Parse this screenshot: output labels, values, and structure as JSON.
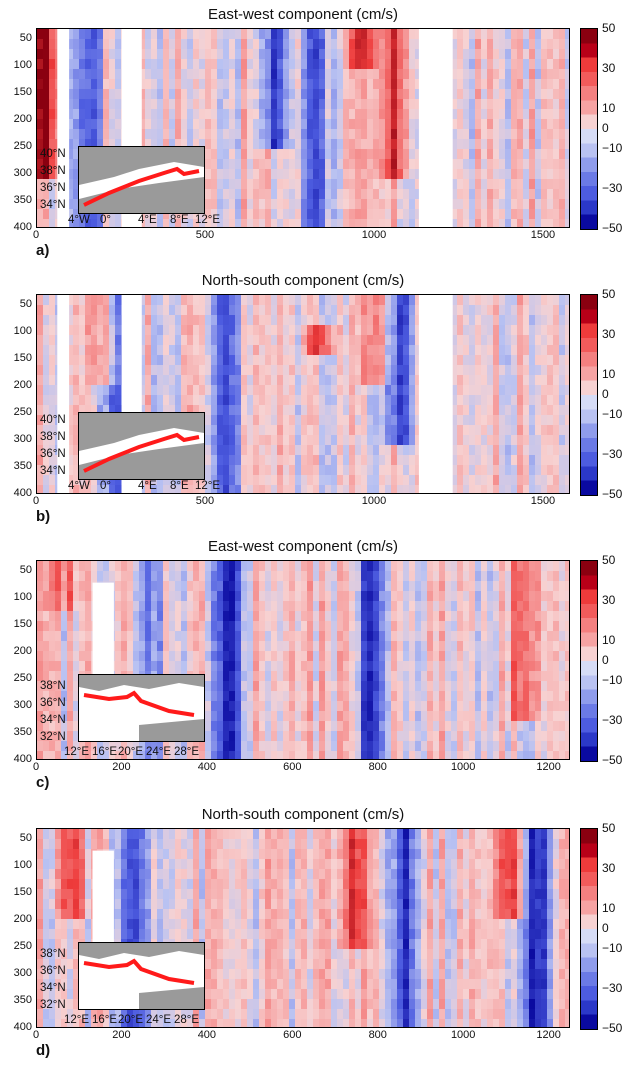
{
  "chart_data": [
    {
      "type": "heatmap",
      "panel_label": "a)",
      "title": "East-west component (cm/s)",
      "x_ticks": [
        "0",
        "500",
        "1000",
        "1500"
      ],
      "xlim": [
        0,
        1580
      ],
      "y_ticks": [
        "50",
        "100",
        "150",
        "200",
        "250",
        "300",
        "350",
        "400"
      ],
      "ylim": [
        400,
        30
      ],
      "colorbar_ticks": [
        "50",
        "30",
        "10",
        "0",
        "−10",
        "−30",
        "−50"
      ],
      "colorbar_range": [
        -50,
        50
      ],
      "gaps_x": [
        [
          60,
          95
        ],
        [
          250,
          310
        ],
        [
          1130,
          1230
        ]
      ],
      "inset_lat_labels": [
        "40°N",
        "38°N",
        "36°N",
        "34°N"
      ],
      "inset_lon_labels": [
        "4°W",
        "0°",
        "4°E",
        "8°E",
        "12°E"
      ],
      "features": [
        {
          "x": 25,
          "depth": [
            30,
            300
          ],
          "value": 45
        },
        {
          "x": 150,
          "depth": [
            30,
            400
          ],
          "value": -30
        },
        {
          "x": 700,
          "depth": [
            30,
            250
          ],
          "value": -35
        },
        {
          "x": 820,
          "depth": [
            30,
            400
          ],
          "value": -30
        },
        {
          "x": 960,
          "depth": [
            30,
            100
          ],
          "value": 30
        },
        {
          "x": 1060,
          "depth": [
            30,
            300
          ],
          "value": 30
        }
      ]
    },
    {
      "type": "heatmap",
      "panel_label": "b)",
      "title": "North-south component (cm/s)",
      "x_ticks": [
        "0",
        "500",
        "1000",
        "1500"
      ],
      "xlim": [
        0,
        1580
      ],
      "y_ticks": [
        "50",
        "100",
        "150",
        "200",
        "250",
        "300",
        "350",
        "400"
      ],
      "ylim": [
        400,
        30
      ],
      "colorbar_ticks": [
        "50",
        "30",
        "10",
        "0",
        "−10",
        "−30",
        "−50"
      ],
      "colorbar_range": [
        -50,
        50
      ],
      "gaps_x": [
        [
          60,
          95
        ],
        [
          250,
          310
        ],
        [
          1130,
          1230
        ]
      ],
      "inset_lat_labels": [
        "40°N",
        "38°N",
        "36°N",
        "34°N"
      ],
      "inset_lon_labels": [
        "4°W",
        "0°",
        "4°E",
        "8°E",
        "12°E"
      ],
      "features": [
        {
          "x": 200,
          "depth": [
            30,
            200
          ],
          "value": 25
        },
        {
          "x": 240,
          "depth": [
            30,
            400
          ],
          "value": -30
        },
        {
          "x": 560,
          "depth": [
            30,
            400
          ],
          "value": -30
        },
        {
          "x": 840,
          "depth": [
            90,
            150
          ],
          "value": 35
        },
        {
          "x": 1070,
          "depth": [
            30,
            300
          ],
          "value": -35
        },
        {
          "x": 1000,
          "depth": [
            30,
            200
          ],
          "value": 25
        }
      ]
    },
    {
      "type": "heatmap",
      "panel_label": "c)",
      "title": "East-west component (cm/s)",
      "x_ticks": [
        "0",
        "200",
        "400",
        "600",
        "800",
        "1000",
        "1200"
      ],
      "xlim": [
        0,
        1250
      ],
      "y_ticks": [
        "50",
        "100",
        "150",
        "200",
        "250",
        "300",
        "350",
        "400"
      ],
      "ylim": [
        400,
        30
      ],
      "colorbar_ticks": [
        "50",
        "30",
        "10",
        "0",
        "−10",
        "−30",
        "−50"
      ],
      "colorbar_range": [
        -50,
        50
      ],
      "gaps_x": [
        [
          130,
          180
        ]
      ],
      "inset_lat_labels": [
        "38°N",
        "36°N",
        "34°N",
        "32°N"
      ],
      "inset_lon_labels": [
        "12°E",
        "16°E",
        "20°E",
        "24°E",
        "28°E"
      ],
      "features": [
        {
          "x": 450,
          "depth": [
            30,
            400
          ],
          "value": -45
        },
        {
          "x": 780,
          "depth": [
            30,
            400
          ],
          "value": -40
        },
        {
          "x": 1140,
          "depth": [
            30,
            330
          ],
          "value": 30
        },
        {
          "x": 60,
          "depth": [
            30,
            120
          ],
          "value": 20
        },
        {
          "x": 260,
          "depth": [
            30,
            400
          ],
          "value": -25
        }
      ]
    },
    {
      "type": "heatmap",
      "panel_label": "d)",
      "title": "North-south component (cm/s)",
      "x_ticks": [
        "0",
        "200",
        "400",
        "600",
        "800",
        "1000",
        "1200"
      ],
      "xlim": [
        0,
        1250
      ],
      "y_ticks": [
        "50",
        "100",
        "150",
        "200",
        "250",
        "300",
        "350",
        "400"
      ],
      "ylim": [
        400,
        30
      ],
      "colorbar_ticks": [
        "50",
        "30",
        "10",
        "0",
        "−10",
        "−30",
        "−50"
      ],
      "colorbar_range": [
        -50,
        50
      ],
      "gaps_x": [
        [
          130,
          180
        ]
      ],
      "inset_lat_labels": [
        "38°N",
        "36°N",
        "34°N",
        "32°N"
      ],
      "inset_lon_labels": [
        "12°E",
        "16°E",
        "20°E",
        "24°E",
        "28°E"
      ],
      "features": [
        {
          "x": 80,
          "depth": [
            30,
            200
          ],
          "value": 30
        },
        {
          "x": 220,
          "depth": [
            30,
            400
          ],
          "value": -35
        },
        {
          "x": 740,
          "depth": [
            30,
            250
          ],
          "value": 30
        },
        {
          "x": 860,
          "depth": [
            30,
            400
          ],
          "value": -35
        },
        {
          "x": 1110,
          "depth": [
            30,
            200
          ],
          "value": 35
        },
        {
          "x": 1170,
          "depth": [
            30,
            400
          ],
          "value": -45
        }
      ]
    }
  ],
  "colorscale": {
    "neg_strong": "#0a0aa0",
    "neg_mid": "#4d5ce0",
    "neg_weak": "#b9c2f2",
    "zero": "#f7d2d2",
    "pos_weak": "#f6a3a3",
    "pos_mid": "#ee3b3b",
    "pos_strong": "#8a0010",
    "track": "#ff1a1a"
  }
}
